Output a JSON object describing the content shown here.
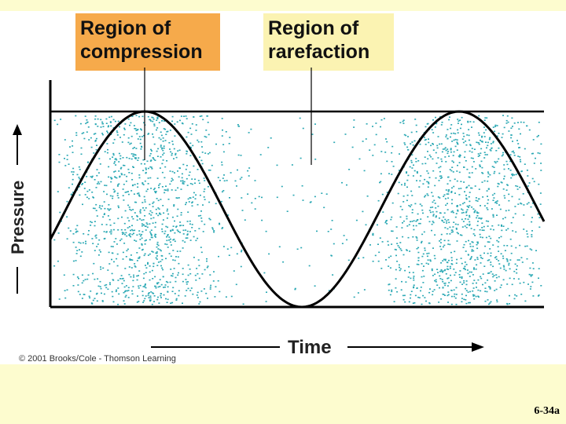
{
  "labels": {
    "compression": [
      "Region of",
      "compression"
    ],
    "rarefaction": [
      "Region of",
      "rarefaction"
    ]
  },
  "axes": {
    "y_label": "Pressure",
    "x_label": "Time"
  },
  "copyright": "© 2001 Brooks/Cole - Thomson Learning",
  "slide_number": "6-34a",
  "colors": {
    "slide_background": "#fdfccf",
    "compression_label_bg": "#f6aa4b",
    "rarefaction_label_bg": "#fbf3b2",
    "particle_dots": "#2aa8b4",
    "wave_line": "#000000"
  }
}
